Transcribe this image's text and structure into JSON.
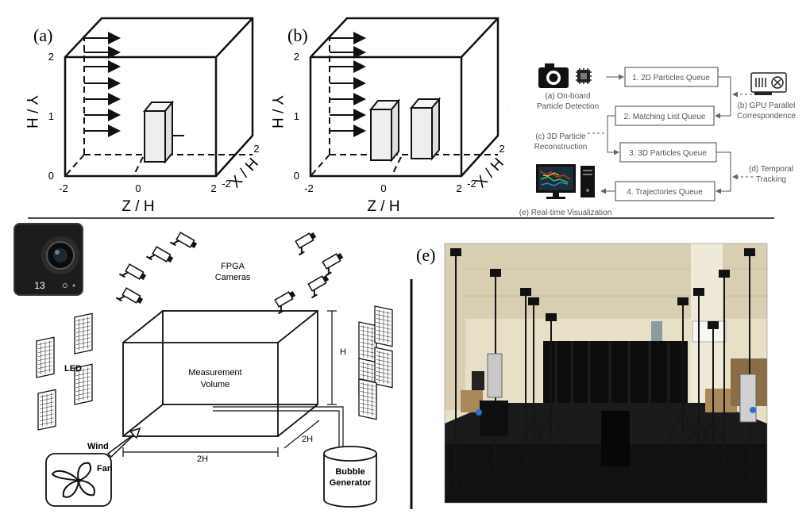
{
  "panel_a": {
    "letter": "(a)",
    "y_ticks": [
      "0",
      "1",
      "2"
    ],
    "z_ticks": [
      "-2",
      "0",
      "2"
    ],
    "x_ticks": [
      "-2",
      "2"
    ],
    "y_label": "Y / H",
    "z_label": "Z / H",
    "x_label": "X / H"
  },
  "panel_b": {
    "letter": "(b)",
    "y_ticks": [
      "0",
      "1",
      "2"
    ],
    "z_ticks": [
      "-2",
      "0",
      "2"
    ],
    "x_ticks": [
      "-2",
      "2"
    ],
    "y_label": "Y / H",
    "z_label": "Z / H",
    "x_label": "X / H"
  },
  "pipeline": {
    "onboard": "(a) On-board\nParticle Detection",
    "gpu": "(b) GPU Parallel\nCorrespondence",
    "recon": "(c) 3D Particle\nReconstruction",
    "temporal": "(d) Temporal\nTracking",
    "viz": "(e) Real-time Visualization",
    "queue1": "1. 2D Particles Queue",
    "queue2": "2. Matching List Queue",
    "queue3": "3. 3D Particles Queue",
    "queue4": "4. Trajectories Queue"
  },
  "setup": {
    "camera_display": "13",
    "fpga": "FPGA\nCameras",
    "measurement": "Measurement\nVolume",
    "led": "LED",
    "h": "H",
    "width": "2H",
    "depth": "2H",
    "wind": "Wind",
    "fan": "Fan",
    "bubble": "Bubble\nGenerator"
  },
  "photo": {
    "letter": "(e)"
  },
  "colors": {
    "photo_wall": "#e7dfc6",
    "photo_floor": "#1a1a1a",
    "curtain": "#0d0d0d"
  }
}
